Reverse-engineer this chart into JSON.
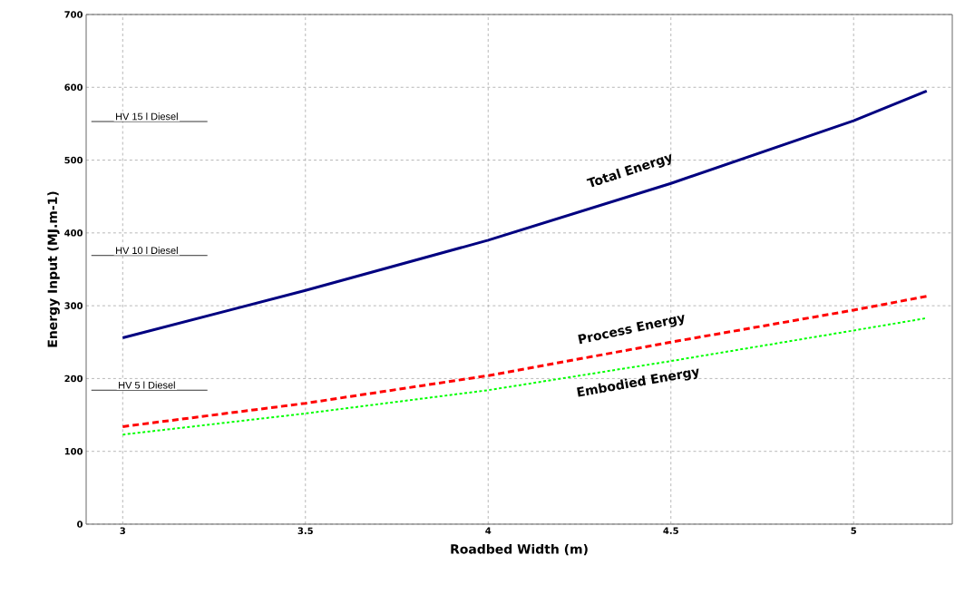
{
  "chart_data": {
    "type": "line",
    "xlabel": "Roadbed Width (m)",
    "ylabel": "Energy Input (MJ.m-1)",
    "x": [
      3,
      3.5,
      4,
      4.5,
      5,
      5.2
    ],
    "series": [
      {
        "name": "Total Energy",
        "color": "#000080",
        "line_style": "solid",
        "values": [
          256,
          321,
          390,
          468,
          554,
          595
        ]
      },
      {
        "name": "Process Energy",
        "color": "#ff0000",
        "line_style": "dashed",
        "values": [
          134,
          166,
          204,
          250,
          294,
          313
        ]
      },
      {
        "name": "Embodied Energy",
        "color": "#00ff00",
        "line_style": "dotted",
        "values": [
          123,
          152,
          184,
          224,
          266,
          283
        ]
      }
    ],
    "xlim": [
      2.9,
      5.27
    ],
    "xticks": [
      3,
      3.5,
      4,
      4.5,
      5
    ],
    "ylim": [
      0,
      700
    ],
    "yticks": [
      0,
      100,
      200,
      300,
      400,
      500,
      600,
      700
    ],
    "ref_lines": [
      {
        "axis": "y",
        "value": 553,
        "label": "HV 15 l Diesel",
        "color": "#000000"
      },
      {
        "axis": "y",
        "value": 369,
        "label": "HV 10 l Diesel",
        "color": "#000000"
      },
      {
        "axis": "y",
        "value": 184,
        "label": "HV 5 l Diesel",
        "color": "#000000"
      }
    ],
    "grid": true,
    "marker": "none"
  }
}
